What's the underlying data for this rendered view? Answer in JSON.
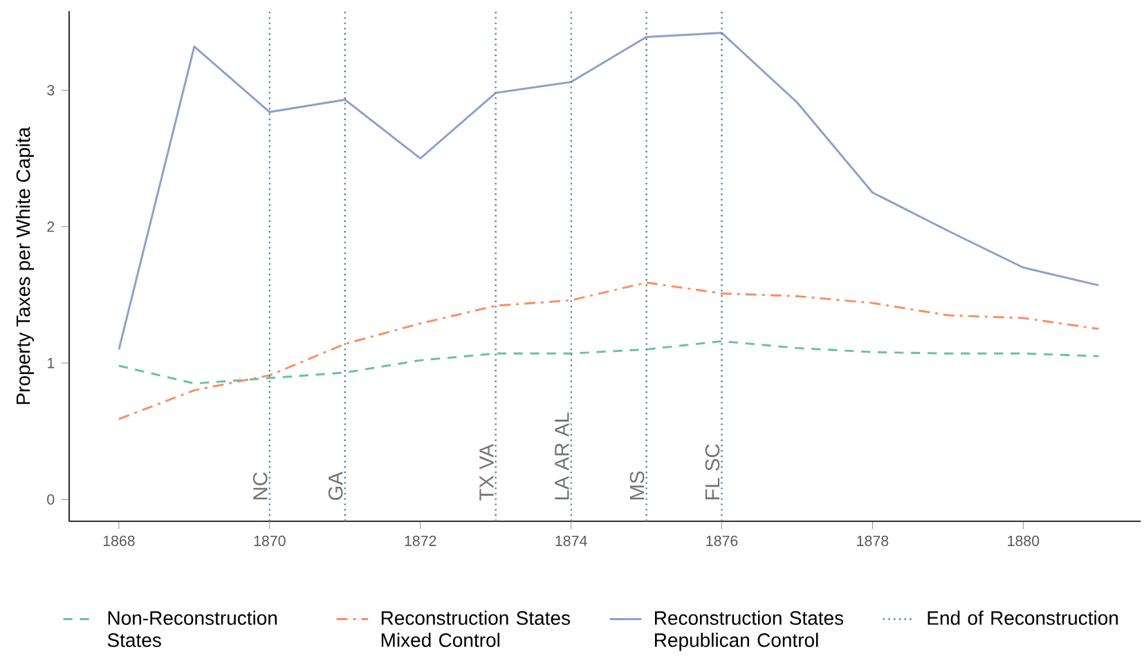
{
  "chart_data": {
    "type": "line",
    "ylabel": "Property Taxes per White Capita",
    "x": [
      1868,
      1869,
      1870,
      1871,
      1872,
      1873,
      1874,
      1875,
      1876,
      1877,
      1878,
      1879,
      1880,
      1881
    ],
    "series": [
      {
        "name": "Non-Reconstruction States",
        "color": "#66c2a5",
        "line_style": "dashed",
        "values": [
          0.98,
          0.85,
          0.89,
          0.93,
          1.02,
          1.07,
          1.07,
          1.1,
          1.16,
          1.11,
          1.08,
          1.07,
          1.07,
          1.05
        ]
      },
      {
        "name": "Reconstruction States Mixed Control",
        "color": "#fc8d62",
        "line_style": "dashdot",
        "values": [
          0.59,
          0.8,
          0.91,
          1.14,
          1.29,
          1.42,
          1.46,
          1.59,
          1.51,
          1.49,
          1.44,
          1.35,
          1.33,
          1.25
        ]
      },
      {
        "name": "Reconstruction States Republican Control",
        "color": "#8da0cb",
        "line_style": "solid",
        "values": [
          1.1,
          3.32,
          2.84,
          2.93,
          2.5,
          2.98,
          3.06,
          3.39,
          3.42,
          2.91,
          2.25,
          1.97,
          1.7,
          1.57
        ]
      }
    ],
    "xlim": [
      1867.34,
      1881.56
    ],
    "ylim": [
      -0.16,
      3.58
    ],
    "xticks": [
      1868,
      1870,
      1872,
      1874,
      1876,
      1878,
      1880
    ],
    "yticks": [
      0,
      1,
      2,
      3
    ],
    "ref_lines": [
      {
        "axis": "x",
        "value": 1870,
        "label": "NC",
        "color": "#5b8499",
        "line_style": "dotted"
      },
      {
        "axis": "x",
        "value": 1871,
        "label": "GA",
        "color": "#5b8499",
        "line_style": "dotted"
      },
      {
        "axis": "x",
        "value": 1873,
        "label": "TX  VA",
        "color": "#5b8499",
        "line_style": "dotted"
      },
      {
        "axis": "x",
        "value": 1874,
        "label": "LA  AR  AL",
        "color": "#5b8499",
        "line_style": "dotted"
      },
      {
        "axis": "x",
        "value": 1875,
        "label": "MS",
        "color": "#5b8499",
        "line_style": "dotted"
      },
      {
        "axis": "x",
        "value": 1876,
        "label": "FL  SC",
        "color": "#5b8499",
        "line_style": "dotted"
      }
    ],
    "annotations": [
      "End of Reconstruction"
    ],
    "grid": false,
    "legend": "bottom",
    "marker": "none"
  }
}
